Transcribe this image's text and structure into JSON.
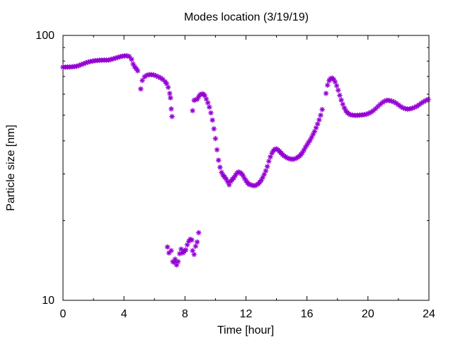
{
  "chart_data": {
    "type": "scatter",
    "title": "Modes location (3/19/19)",
    "xlabel": "Time [hour]",
    "ylabel": "Particle size [nm]",
    "xlim": [
      0,
      24
    ],
    "ylim": [
      10,
      100
    ],
    "yscale": "log",
    "xticks": [
      "0",
      "4",
      "8",
      "12",
      "16",
      "20",
      "24"
    ],
    "yticks": [
      "10",
      "100"
    ],
    "grid": false,
    "marker_color": "#9400D3",
    "series": [
      {
        "points": [
          [
            0.0,
            75.9
          ],
          [
            0.15,
            75.9
          ],
          [
            0.3,
            76.0
          ],
          [
            0.45,
            76.0
          ],
          [
            0.6,
            76.1
          ],
          [
            0.75,
            76.3
          ],
          [
            0.9,
            76.5
          ],
          [
            1.05,
            77.0
          ],
          [
            1.2,
            77.6
          ],
          [
            1.35,
            78.2
          ],
          [
            1.5,
            78.8
          ],
          [
            1.65,
            79.3
          ],
          [
            1.8,
            79.7
          ],
          [
            1.95,
            80.0
          ],
          [
            2.1,
            80.3
          ],
          [
            2.25,
            80.4
          ],
          [
            2.4,
            80.6
          ],
          [
            2.55,
            80.6
          ],
          [
            2.7,
            80.7
          ],
          [
            2.85,
            80.7
          ],
          [
            3.0,
            80.7
          ],
          [
            3.15,
            81.2
          ],
          [
            3.3,
            81.6
          ],
          [
            3.45,
            82.1
          ],
          [
            3.6,
            82.6
          ],
          [
            3.75,
            83.1
          ],
          [
            3.9,
            83.5
          ],
          [
            4.05,
            83.7
          ],
          [
            4.2,
            83.8
          ],
          [
            4.35,
            83.2
          ],
          [
            4.5,
            81.2
          ],
          [
            4.6,
            78.0
          ],
          [
            4.7,
            76.2
          ],
          [
            4.8,
            74.9
          ],
          [
            4.9,
            73.5
          ],
          [
            5.1,
            62.8
          ],
          [
            5.2,
            67.6
          ],
          [
            5.35,
            69.8
          ],
          [
            5.5,
            70.7
          ],
          [
            5.65,
            71.1
          ],
          [
            5.8,
            71.1
          ],
          [
            5.95,
            70.9
          ],
          [
            6.1,
            70.4
          ],
          [
            6.25,
            69.8
          ],
          [
            6.4,
            69.1
          ],
          [
            6.55,
            68.2
          ],
          [
            6.7,
            66.9
          ],
          [
            6.8,
            65.7
          ],
          [
            6.9,
            63.7
          ],
          [
            7.0,
            60.4
          ],
          [
            7.05,
            58.1
          ],
          [
            7.1,
            52.8
          ],
          [
            7.15,
            49.4
          ],
          [
            8.5,
            52.0
          ],
          [
            8.6,
            56.9
          ],
          [
            8.7,
            57.2
          ],
          [
            8.8,
            57.4
          ],
          [
            8.9,
            58.7
          ],
          [
            9.0,
            59.8
          ],
          [
            9.1,
            60.1
          ],
          [
            9.2,
            60.1
          ],
          [
            9.3,
            59.2
          ],
          [
            9.4,
            57.5
          ],
          [
            9.5,
            55.7
          ],
          [
            9.6,
            53.6
          ],
          [
            9.7,
            51.0
          ],
          [
            9.8,
            47.9
          ],
          [
            9.9,
            44.4
          ],
          [
            10.0,
            40.8
          ],
          [
            10.1,
            37.0
          ],
          [
            10.2,
            33.8
          ],
          [
            10.3,
            31.8
          ],
          [
            10.4,
            30.4
          ],
          [
            10.5,
            29.7
          ],
          [
            10.6,
            29.2
          ],
          [
            10.7,
            28.7
          ],
          [
            10.8,
            28.0
          ],
          [
            10.9,
            27.3
          ],
          [
            11.0,
            28.1
          ],
          [
            11.1,
            28.6
          ],
          [
            11.2,
            29.0
          ],
          [
            11.3,
            29.6
          ],
          [
            11.4,
            30.2
          ],
          [
            11.5,
            30.5
          ],
          [
            11.6,
            30.4
          ],
          [
            11.7,
            30.1
          ],
          [
            11.8,
            29.6
          ],
          [
            11.9,
            28.9
          ],
          [
            12.0,
            28.3
          ],
          [
            12.1,
            27.8
          ],
          [
            12.2,
            27.4
          ],
          [
            12.3,
            27.3
          ],
          [
            12.4,
            27.2
          ],
          [
            12.5,
            27.1
          ],
          [
            12.6,
            27.1
          ],
          [
            12.7,
            27.3
          ],
          [
            12.8,
            27.5
          ],
          [
            12.9,
            27.9
          ],
          [
            13.0,
            28.4
          ],
          [
            13.1,
            29.1
          ],
          [
            13.2,
            29.9
          ],
          [
            13.3,
            30.8
          ],
          [
            13.4,
            32.0
          ],
          [
            13.5,
            33.5
          ],
          [
            13.6,
            34.8
          ],
          [
            13.7,
            35.9
          ],
          [
            13.8,
            36.7
          ],
          [
            13.9,
            37.2
          ],
          [
            14.0,
            37.3
          ],
          [
            14.1,
            37.0
          ],
          [
            14.2,
            36.5
          ],
          [
            14.3,
            36.0
          ],
          [
            14.4,
            35.5
          ],
          [
            14.5,
            35.1
          ],
          [
            14.6,
            34.8
          ],
          [
            14.7,
            34.5
          ],
          [
            14.8,
            34.3
          ],
          [
            14.9,
            34.2
          ],
          [
            15.0,
            34.1
          ],
          [
            15.1,
            34.1
          ],
          [
            15.2,
            34.2
          ],
          [
            15.3,
            34.4
          ],
          [
            15.4,
            34.7
          ],
          [
            15.5,
            35.0
          ],
          [
            15.6,
            35.5
          ],
          [
            15.7,
            36.1
          ],
          [
            15.8,
            36.9
          ],
          [
            15.9,
            37.8
          ],
          [
            16.0,
            38.6
          ],
          [
            16.1,
            39.4
          ],
          [
            16.2,
            40.2
          ],
          [
            16.3,
            41.2
          ],
          [
            16.4,
            42.3
          ],
          [
            16.5,
            43.4
          ],
          [
            16.6,
            44.8
          ],
          [
            16.7,
            46.3
          ],
          [
            16.8,
            48.0
          ],
          [
            16.9,
            50.0
          ],
          [
            17.0,
            52.5
          ],
          [
            17.25,
            60.4
          ],
          [
            17.35,
            64.9
          ],
          [
            17.45,
            67.5
          ],
          [
            17.55,
            68.7
          ],
          [
            17.65,
            69.0
          ],
          [
            17.75,
            68.2
          ],
          [
            17.85,
            66.7
          ],
          [
            17.95,
            64.6
          ],
          [
            18.05,
            62.1
          ],
          [
            18.15,
            59.4
          ],
          [
            18.25,
            57.0
          ],
          [
            18.35,
            55.0
          ],
          [
            18.45,
            53.3
          ],
          [
            18.55,
            52.0
          ],
          [
            18.65,
            51.1
          ],
          [
            18.75,
            50.6
          ],
          [
            18.85,
            50.2
          ],
          [
            19.0,
            50.0
          ],
          [
            19.15,
            49.9
          ],
          [
            19.3,
            49.9
          ],
          [
            19.45,
            50.0
          ],
          [
            19.6,
            50.1
          ],
          [
            19.75,
            50.2
          ],
          [
            19.9,
            50.4
          ],
          [
            20.05,
            50.8
          ],
          [
            20.2,
            51.3
          ],
          [
            20.35,
            52.0
          ],
          [
            20.5,
            52.9
          ],
          [
            20.65,
            53.9
          ],
          [
            20.8,
            54.9
          ],
          [
            20.95,
            55.8
          ],
          [
            21.1,
            56.5
          ],
          [
            21.25,
            56.9
          ],
          [
            21.4,
            56.8
          ],
          [
            21.55,
            56.5
          ],
          [
            21.7,
            56.1
          ],
          [
            21.85,
            55.5
          ],
          [
            22.0,
            54.7
          ],
          [
            22.15,
            53.9
          ],
          [
            22.3,
            53.3
          ],
          [
            22.45,
            52.9
          ],
          [
            22.6,
            52.7
          ],
          [
            22.75,
            52.8
          ],
          [
            22.9,
            53.1
          ],
          [
            23.05,
            53.5
          ],
          [
            23.2,
            54.0
          ],
          [
            23.35,
            54.7
          ],
          [
            23.5,
            55.5
          ],
          [
            23.65,
            56.2
          ],
          [
            23.8,
            56.8
          ],
          [
            23.95,
            57.3
          ],
          [
            6.85,
            15.9
          ],
          [
            6.95,
            15.1
          ],
          [
            7.1,
            15.4
          ],
          [
            7.2,
            14.0
          ],
          [
            7.3,
            13.9
          ],
          [
            7.35,
            14.3
          ],
          [
            7.45,
            13.6
          ],
          [
            7.55,
            14.0
          ],
          [
            7.65,
            15.0
          ],
          [
            7.75,
            15.6
          ],
          [
            7.85,
            15.1
          ],
          [
            7.95,
            15.3
          ],
          [
            8.05,
            15.5
          ],
          [
            8.15,
            16.2
          ],
          [
            8.25,
            16.7
          ],
          [
            8.35,
            17.0
          ],
          [
            8.45,
            16.9
          ],
          [
            8.5,
            15.4
          ],
          [
            8.6,
            14.9
          ],
          [
            8.7,
            16.0
          ],
          [
            8.8,
            16.6
          ],
          [
            8.9,
            18.0
          ]
        ]
      }
    ]
  }
}
